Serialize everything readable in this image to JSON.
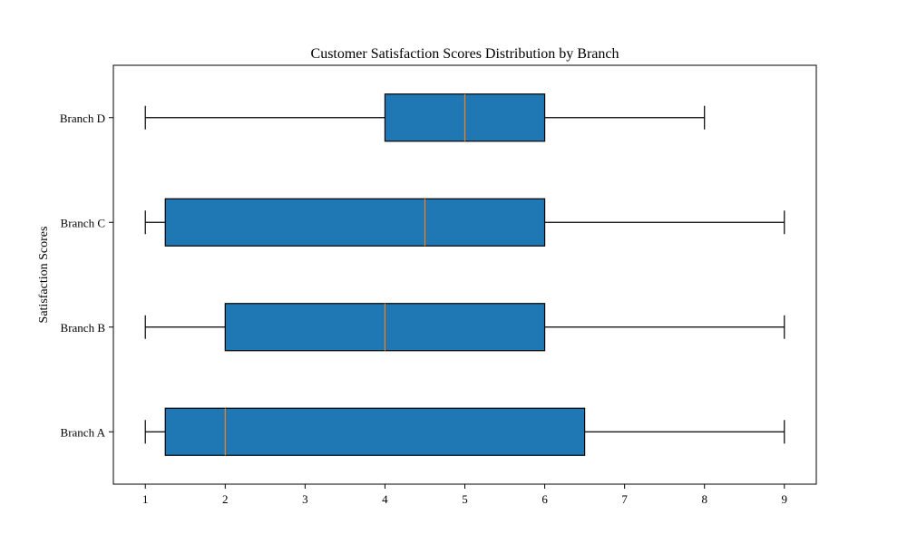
{
  "chart_data": {
    "type": "box",
    "orientation": "horizontal",
    "title": "Customer Satisfaction Scores Distribution by Branch",
    "xlabel": "",
    "ylabel": "Satisfaction Scores",
    "xlim": [
      0.6,
      9.4
    ],
    "xticks": [
      "1",
      "2",
      "3",
      "4",
      "5",
      "6",
      "7",
      "8",
      "9"
    ],
    "categories": [
      "Branch A",
      "Branch B",
      "Branch C",
      "Branch D"
    ],
    "boxes": [
      {
        "category": "Branch A",
        "min": 1,
        "q1": 1.25,
        "median": 2,
        "q3": 6.5,
        "max": 9
      },
      {
        "category": "Branch B",
        "min": 1,
        "q1": 2,
        "median": 4,
        "q3": 6,
        "max": 9
      },
      {
        "category": "Branch C",
        "min": 1,
        "q1": 1.25,
        "median": 4.5,
        "q3": 6,
        "max": 9
      },
      {
        "category": "Branch D",
        "min": 1,
        "q1": 4,
        "median": 5,
        "q3": 6,
        "max": 8
      }
    ],
    "grid": false,
    "colors": {
      "box_fill": "#1f77b4",
      "median_line": "#ff7f0e",
      "edge": "#000000"
    }
  }
}
